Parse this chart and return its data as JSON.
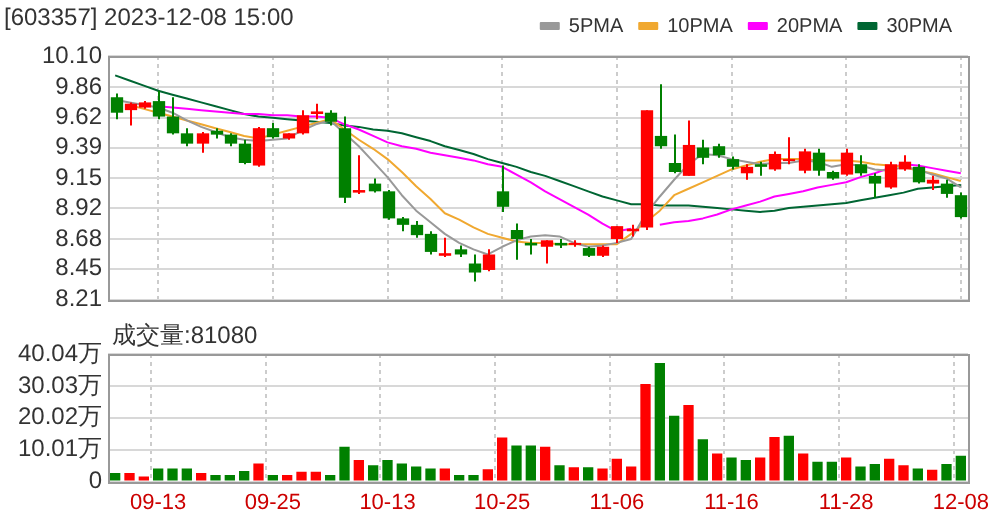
{
  "chart_data": [
    {
      "type": "candlestick",
      "title": "[603357] 2023-12-08 15:00",
      "categories": [
        null,
        null,
        null,
        null,
        null,
        null,
        null,
        null,
        null,
        null,
        null,
        null,
        null,
        null,
        null,
        null,
        null,
        null,
        null,
        null,
        null,
        null,
        null,
        null,
        null,
        null,
        null,
        null,
        null,
        null,
        null,
        null,
        null,
        null,
        null,
        null,
        null,
        null,
        null,
        null,
        null,
        null,
        null,
        null,
        null,
        null,
        null,
        null,
        null,
        null,
        null,
        null,
        null,
        null,
        null,
        null,
        null,
        null,
        null,
        null
      ],
      "ohlc": [
        [
          9.78,
          9.81,
          9.61,
          9.66
        ],
        [
          9.68,
          9.74,
          9.56,
          9.73
        ],
        [
          9.7,
          9.75,
          9.69,
          9.74
        ],
        [
          9.75,
          9.83,
          9.61,
          9.63
        ],
        [
          9.63,
          9.78,
          9.49,
          9.5
        ],
        [
          9.5,
          9.54,
          9.4,
          9.42
        ],
        [
          9.42,
          9.51,
          9.35,
          9.5
        ],
        [
          9.52,
          9.54,
          9.46,
          9.49
        ],
        [
          9.49,
          9.5,
          9.4,
          9.42
        ],
        [
          9.42,
          9.45,
          9.26,
          9.27
        ],
        [
          9.25,
          9.55,
          9.24,
          9.54
        ],
        [
          9.54,
          9.58,
          9.46,
          9.47
        ],
        [
          9.46,
          9.5,
          9.45,
          9.5
        ],
        [
          9.5,
          9.68,
          9.49,
          9.64
        ],
        [
          9.65,
          9.73,
          9.61,
          9.67
        ],
        [
          9.66,
          9.68,
          9.56,
          9.59
        ],
        [
          9.54,
          9.63,
          8.96,
          9.0
        ],
        [
          9.04,
          9.33,
          9.03,
          9.06
        ],
        [
          9.11,
          9.15,
          9.04,
          9.05
        ],
        [
          9.05,
          9.06,
          8.83,
          8.84
        ],
        [
          8.84,
          8.85,
          8.74,
          8.79
        ],
        [
          8.79,
          8.82,
          8.69,
          8.71
        ],
        [
          8.72,
          8.74,
          8.56,
          8.58
        ],
        [
          8.55,
          8.69,
          8.54,
          8.57
        ],
        [
          8.6,
          8.63,
          8.54,
          8.56
        ],
        [
          8.49,
          8.56,
          8.35,
          8.42
        ],
        [
          8.44,
          8.6,
          8.43,
          8.56
        ],
        [
          9.05,
          9.25,
          8.89,
          8.93
        ],
        [
          8.75,
          8.8,
          8.52,
          8.68
        ],
        [
          8.65,
          8.68,
          8.56,
          8.63
        ],
        [
          8.62,
          8.67,
          8.49,
          8.67
        ],
        [
          8.65,
          8.68,
          8.61,
          8.63
        ],
        [
          8.64,
          8.67,
          8.62,
          8.65
        ],
        [
          8.61,
          8.62,
          8.54,
          8.55
        ],
        [
          8.55,
          8.63,
          8.54,
          8.62
        ],
        [
          8.68,
          8.78,
          8.65,
          8.78
        ],
        [
          8.74,
          8.79,
          8.7,
          8.76
        ],
        [
          8.77,
          9.68,
          8.75,
          9.68
        ],
        [
          9.48,
          9.88,
          9.38,
          9.4
        ],
        [
          9.27,
          9.49,
          9.19,
          9.2
        ],
        [
          9.17,
          9.6,
          9.17,
          9.41
        ],
        [
          9.39,
          9.45,
          9.26,
          9.31
        ],
        [
          9.4,
          9.42,
          9.31,
          9.33
        ],
        [
          9.3,
          9.32,
          9.22,
          9.24
        ],
        [
          9.19,
          9.26,
          9.14,
          9.24
        ],
        [
          9.26,
          9.28,
          9.17,
          9.24
        ],
        [
          9.22,
          9.36,
          9.21,
          9.34
        ],
        [
          9.29,
          9.47,
          9.26,
          9.3
        ],
        [
          9.21,
          9.38,
          9.19,
          9.36
        ],
        [
          9.35,
          9.38,
          9.17,
          9.21
        ],
        [
          9.2,
          9.21,
          9.14,
          9.15
        ],
        [
          9.18,
          9.38,
          9.17,
          9.35
        ],
        [
          9.26,
          9.33,
          9.17,
          9.19
        ],
        [
          9.17,
          9.19,
          9.0,
          9.11
        ],
        [
          9.08,
          9.28,
          9.07,
          9.26
        ],
        [
          9.22,
          9.33,
          9.21,
          9.28
        ],
        [
          9.24,
          9.26,
          9.11,
          9.12
        ],
        [
          9.11,
          9.17,
          9.06,
          9.14
        ],
        [
          9.11,
          9.14,
          9.0,
          9.03
        ],
        [
          9.02,
          9.04,
          8.84,
          8.85
        ]
      ],
      "colors": [
        "#008000",
        "#ff0000",
        "#ff0000",
        "#008000",
        "#008000",
        "#008000",
        "#ff0000",
        "#008000",
        "#008000",
        "#008000",
        "#ff0000",
        "#008000",
        "#ff0000",
        "#ff0000",
        "#ff0000",
        "#008000",
        "#008000",
        "#ff0000",
        "#008000",
        "#008000",
        "#008000",
        "#008000",
        "#008000",
        "#ff0000",
        "#008000",
        "#008000",
        "#ff0000",
        "#008000",
        "#008000",
        "#008000",
        "#ff0000",
        "#008000",
        "#ff0000",
        "#008000",
        "#ff0000",
        "#ff0000",
        "#ff0000",
        "#ff0000",
        "#008000",
        "#008000",
        "#ff0000",
        "#008000",
        "#008000",
        "#008000",
        "#ff0000",
        "#008000",
        "#ff0000",
        "#ff0000",
        "#ff0000",
        "#008000",
        "#008000",
        "#ff0000",
        "#008000",
        "#008000",
        "#ff0000",
        "#ff0000",
        "#008000",
        "#ff0000",
        "#008000",
        "#008000"
      ],
      "series": [
        {
          "name": "5PMA",
          "type": "line",
          "color": "#999999",
          "values": [
            9.76,
            9.74,
            9.72,
            9.7,
            9.66,
            9.6,
            9.55,
            9.51,
            9.47,
            9.45,
            9.44,
            9.45,
            9.46,
            9.52,
            9.57,
            9.6,
            9.5,
            9.4,
            9.28,
            9.16,
            9.02,
            8.9,
            8.81,
            8.72,
            8.65,
            8.6,
            8.56,
            8.62,
            8.67,
            8.7,
            8.71,
            8.7,
            8.65,
            8.62,
            8.63,
            8.65,
            8.68,
            8.87,
            9.01,
            9.14,
            9.26,
            9.34,
            9.33,
            9.3,
            9.28,
            9.26,
            9.27,
            9.27,
            9.29,
            9.28,
            9.24,
            9.26,
            9.25,
            9.22,
            9.21,
            9.24,
            9.22,
            9.18,
            9.15,
            9.08
          ]
        },
        {
          "name": "10PMA",
          "type": "line",
          "color": "#f0a830",
          "values": [
            null,
            9.72,
            9.69,
            9.66,
            9.63,
            9.6,
            9.57,
            9.54,
            9.51,
            9.48,
            9.46,
            9.49,
            9.52,
            9.55,
            9.58,
            9.61,
            9.53,
            9.45,
            9.38,
            9.3,
            9.2,
            9.09,
            8.99,
            8.88,
            8.83,
            8.77,
            8.72,
            8.69,
            8.66,
            8.65,
            8.65,
            8.64,
            8.64,
            8.64,
            8.64,
            8.64,
            8.72,
            8.81,
            8.9,
            9.02,
            9.07,
            9.12,
            9.17,
            9.22,
            9.25,
            9.28,
            9.3,
            9.3,
            9.3,
            9.29,
            9.29,
            9.29,
            9.28,
            9.26,
            9.25,
            9.24,
            9.21,
            9.19,
            9.16,
            9.13
          ]
        },
        {
          "name": "20PMA",
          "type": "line",
          "color": "#ff00ff",
          "values": [
            null,
            null,
            null,
            9.71,
            9.7,
            9.69,
            9.68,
            9.67,
            9.66,
            9.65,
            9.65,
            9.64,
            9.64,
            9.63,
            9.63,
            9.62,
            9.57,
            9.53,
            9.48,
            9.43,
            9.4,
            9.38,
            9.35,
            9.33,
            9.31,
            9.29,
            9.26,
            9.24,
            9.18,
            9.12,
            9.05,
            8.99,
            8.93,
            8.87,
            8.8,
            8.74,
            8.76,
            null,
            8.79,
            8.81,
            8.82,
            8.84,
            8.87,
            8.91,
            8.94,
            8.97,
            9.01,
            9.03,
            9.05,
            9.08,
            9.1,
            9.12,
            9.16,
            9.19,
            9.23,
            9.26,
            9.25,
            9.23,
            9.21,
            9.19
          ]
        },
        {
          "name": "30PMA",
          "type": "line",
          "color": "#006633",
          "values": [
            9.95,
            9.91,
            9.87,
            9.83,
            9.8,
            9.77,
            9.74,
            9.71,
            9.68,
            9.65,
            9.63,
            9.62,
            9.61,
            9.6,
            9.59,
            9.58,
            9.56,
            9.55,
            9.53,
            9.52,
            9.5,
            9.47,
            9.44,
            9.4,
            9.37,
            9.34,
            9.3,
            9.27,
            9.24,
            9.2,
            9.17,
            9.13,
            9.09,
            9.05,
            9.01,
            8.98,
            8.95,
            8.95,
            8.94,
            8.94,
            8.94,
            8.93,
            8.92,
            8.91,
            8.9,
            8.89,
            8.9,
            8.92,
            8.93,
            8.94,
            8.95,
            8.96,
            8.98,
            9.0,
            9.02,
            9.04,
            9.07,
            9.08,
            9.09,
            9.1
          ]
        }
      ],
      "ylim": [
        8.21,
        10.1
      ],
      "yticks": [
        8.21,
        8.45,
        8.68,
        8.92,
        9.15,
        9.39,
        9.62,
        9.86,
        {
          "value": 10.1,
          "label": "10.10"
        }
      ],
      "grid": true,
      "legend": "top right",
      "tick_labels": "y",
      "marker": "none"
    },
    {
      "type": "bar",
      "title": "成交量:81080",
      "categories": [
        null,
        null,
        null,
        "09-13",
        null,
        null,
        null,
        null,
        null,
        null,
        null,
        "09-25",
        null,
        null,
        null,
        null,
        null,
        null,
        null,
        "10-13",
        null,
        null,
        null,
        null,
        null,
        null,
        null,
        "10-25",
        null,
        null,
        null,
        null,
        null,
        null,
        null,
        "11-06",
        null,
        null,
        null,
        null,
        null,
        null,
        null,
        "11-16",
        null,
        null,
        null,
        null,
        null,
        null,
        null,
        "11-28",
        null,
        null,
        null,
        null,
        null,
        null,
        null,
        "12-08"
      ],
      "values": [
        2.7,
        2.7,
        1.6,
        4.1,
        4.1,
        4.1,
        2.7,
        2.1,
        2.1,
        3.3,
        5.7,
        2.1,
        2.1,
        3.1,
        3.1,
        2.1,
        10.9,
        6.8,
        5.1,
        6.8,
        5.7,
        4.7,
        4.1,
        4.1,
        2.1,
        2.1,
        3.9,
        13.8,
        11.3,
        11.3,
        10.9,
        5.1,
        4.5,
        4.5,
        4.1,
        7.2,
        4.7,
        30.6,
        37.2,
        20.7,
        24.0,
        13.3,
        8.8,
        7.6,
        6.8,
        7.6,
        14.0,
        14.4,
        8.8,
        6.2,
        6.2,
        7.6,
        4.7,
        5.5,
        7.2,
        5.1,
        4.1,
        3.7,
        5.5,
        8.1
      ],
      "colors": [
        "#008000",
        "#ff0000",
        "#ff0000",
        "#008000",
        "#008000",
        "#008000",
        "#ff0000",
        "#008000",
        "#008000",
        "#008000",
        "#ff0000",
        "#008000",
        "#ff0000",
        "#ff0000",
        "#ff0000",
        "#008000",
        "#008000",
        "#ff0000",
        "#008000",
        "#008000",
        "#008000",
        "#008000",
        "#008000",
        "#ff0000",
        "#008000",
        "#008000",
        "#ff0000",
        "#ff0000",
        "#008000",
        "#008000",
        "#ff0000",
        "#008000",
        "#ff0000",
        "#008000",
        "#ff0000",
        "#ff0000",
        "#ff0000",
        "#ff0000",
        "#008000",
        "#008000",
        "#ff0000",
        "#008000",
        "#ff0000",
        "#008000",
        "#008000",
        "#ff0000",
        "#ff0000",
        "#008000",
        "#ff0000",
        "#008000",
        "#008000",
        "#ff0000",
        "#008000",
        "#008000",
        "#ff0000",
        "#ff0000",
        "#008000",
        "#ff0000",
        "#008000",
        "#008000"
      ],
      "ylim": [
        0,
        40.04
      ],
      "yticks": [
        0,
        {
          "value": 10.01,
          "label": "10.01万"
        },
        {
          "value": 20.02,
          "label": "20.02万"
        },
        {
          "value": 30.03,
          "label": "30.03万"
        },
        {
          "value": 40.04,
          "label": "40.04万"
        }
      ],
      "grid": true
    }
  ]
}
